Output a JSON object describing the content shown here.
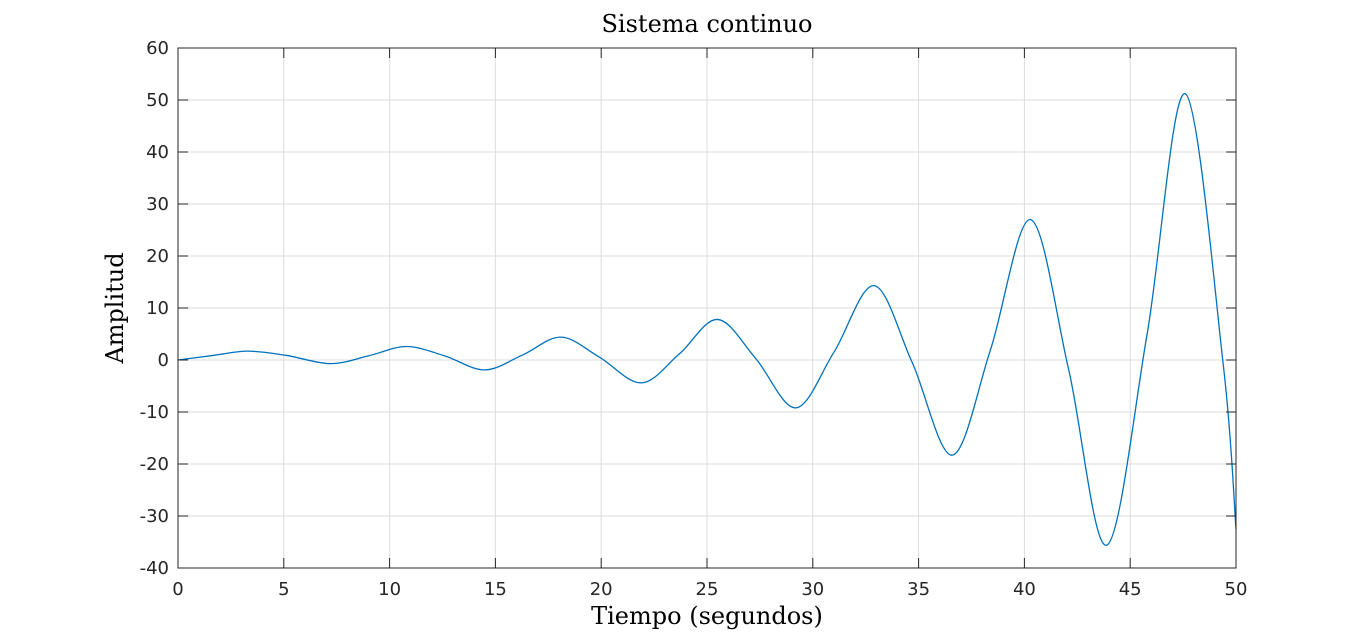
{
  "chart_data": {
    "type": "line",
    "title": "Sistema continuo",
    "xlabel": "Tiempo (segundos)",
    "ylabel": "Amplitud",
    "xlim": [
      0,
      50
    ],
    "ylim": [
      -40,
      60
    ],
    "xticks": [
      0,
      5,
      10,
      15,
      20,
      25,
      30,
      35,
      40,
      45,
      50
    ],
    "yticks": [
      -40,
      -30,
      -20,
      -10,
      0,
      10,
      20,
      30,
      40,
      50,
      60
    ],
    "xtick_labels": [
      "0",
      "5",
      "10",
      "15",
      "20",
      "25",
      "30",
      "35",
      "40",
      "45",
      "50"
    ],
    "ytick_labels": [
      "-40",
      "-30",
      "-20",
      "-10",
      "0",
      "10",
      "20",
      "30",
      "40",
      "50",
      "60"
    ],
    "grid": true,
    "series": [
      {
        "color": "#0072bd",
        "x": [
          0,
          1.7,
          3.3,
          5.1,
          7.2,
          9.0,
          10.8,
          12.6,
          14.5,
          16.3,
          18.1,
          19.9,
          21.9,
          23.7,
          25.5,
          27.3,
          29.2,
          31.0,
          32.9,
          34.7,
          36.6,
          38.4,
          40.3,
          42.1,
          43.9,
          45.8,
          47.6,
          49.4,
          50
        ],
        "y": [
          0,
          0.9,
          1.7,
          0.9,
          -0.7,
          0.8,
          2.6,
          0.8,
          -1.9,
          1.0,
          4.4,
          0.6,
          -4.4,
          1.2,
          7.8,
          0.3,
          -9.2,
          1.5,
          14.3,
          -0.5,
          -18.3,
          2.0,
          27.0,
          -2.0,
          -35.6,
          5.0,
          51.2,
          -1.0,
          -32.5
        ]
      }
    ]
  }
}
